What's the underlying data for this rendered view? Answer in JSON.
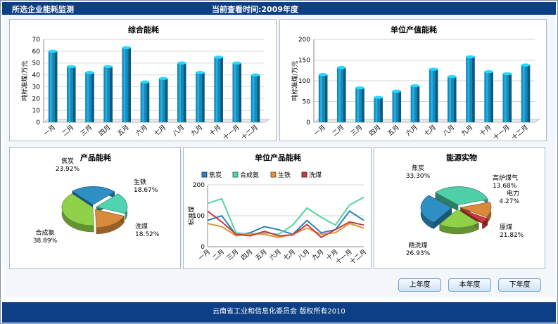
{
  "header": {
    "title": "所选企业能耗监测",
    "time_label": "当前查看时间:2009年度"
  },
  "footer": {
    "copyright": "云南省工业和信息化委员会 版权所有2010"
  },
  "buttons": {
    "prev_year": "上年度",
    "this_year": "本年度",
    "next_year": "下年度"
  },
  "colors": {
    "header_bg": "#0c3f86",
    "bar_blue": "#1788b8"
  },
  "chart_data": [
    {
      "id": "total_energy",
      "type": "bar",
      "title": "综合能耗",
      "ylabel": "吨标准煤/万元",
      "xlabel": "",
      "ylim": [
        0,
        70
      ],
      "yticks": [
        0,
        10,
        20,
        30,
        40,
        50,
        60,
        70
      ],
      "categories": [
        "一月",
        "二月",
        "三月",
        "四月",
        "五月",
        "六月",
        "七月",
        "八月",
        "九月",
        "十月",
        "十一月",
        "十二月"
      ],
      "values": [
        60,
        47,
        42,
        47,
        63,
        34,
        37,
        50,
        42,
        55,
        50,
        40
      ],
      "grid": true
    },
    {
      "id": "unit_output_energy",
      "type": "bar",
      "title": "单位产值能耗",
      "ylabel": "吨标准煤/万元",
      "xlabel": "",
      "ylim": [
        0,
        200
      ],
      "yticks": [
        0,
        50,
        100,
        150,
        200
      ],
      "categories": [
        "一月",
        "二月",
        "三月",
        "四月",
        "五月",
        "六月",
        "七月",
        "八月",
        "九月",
        "十月",
        "十一月",
        "十二月"
      ],
      "values": [
        115,
        132,
        83,
        60,
        75,
        88,
        128,
        110,
        158,
        122,
        117,
        138
      ],
      "grid": true
    },
    {
      "id": "product_energy",
      "type": "pie",
      "title": "产品能耗",
      "slices": [
        {
          "name": "焦炭",
          "pct": "23.92%",
          "value": 23.92,
          "color": "#2d8fc4"
        },
        {
          "name": "生铁",
          "pct": "18.67%",
          "value": 18.67,
          "color": "#4fd3b0"
        },
        {
          "name": "洗煤",
          "pct": "18.52%",
          "value": 18.52,
          "color": "#d98a3a"
        },
        {
          "name": "合成氨",
          "pct": "38.89%",
          "value": 38.89,
          "color": "#8fd24a"
        }
      ]
    },
    {
      "id": "unit_product_energy",
      "type": "line",
      "title": "单位产品能耗",
      "ylabel": "标准煤",
      "ylim": [
        0,
        200
      ],
      "yticks": [
        0,
        100,
        200
      ],
      "categories": [
        "一月",
        "二月",
        "三月",
        "四月",
        "五月",
        "六月",
        "七月",
        "八月",
        "九月",
        "十月",
        "十一月",
        "十二月"
      ],
      "legend_position": "top",
      "series": [
        {
          "name": "焦炭",
          "color": "#2e7fc1",
          "values": [
            85,
            100,
            38,
            45,
            65,
            55,
            40,
            85,
            45,
            55,
            115,
            85
          ]
        },
        {
          "name": "合成氨",
          "color": "#55d3a0",
          "values": [
            140,
            155,
            45,
            40,
            45,
            40,
            70,
            125,
            95,
            70,
            135,
            160
          ]
        },
        {
          "name": "生铁",
          "color": "#e0943a",
          "values": [
            75,
            65,
            35,
            42,
            40,
            30,
            40,
            60,
            40,
            45,
            75,
            60
          ]
        },
        {
          "name": "洗煤",
          "color": "#cc3a3a",
          "values": [
            115,
            80,
            40,
            35,
            50,
            35,
            38,
            72,
            30,
            55,
            80,
            70
          ]
        }
      ]
    },
    {
      "id": "energy_sources",
      "type": "pie",
      "title": "能源实物",
      "slices": [
        {
          "name": "焦炭",
          "pct": "33.30%",
          "value": 33.3,
          "color": "#4fcfa8"
        },
        {
          "name": "高炉煤气",
          "pct": "13.68%",
          "value": 13.68,
          "color": "#d98a3a"
        },
        {
          "name": "电力",
          "pct": "4.27%",
          "value": 4.27,
          "color": "#d23a3a"
        },
        {
          "name": "原煤",
          "pct": "21.82%",
          "value": 21.82,
          "color": "#8fd24a"
        },
        {
          "name": "精洗煤",
          "pct": "26.93%",
          "value": 26.93,
          "color": "#2d8fc4"
        }
      ]
    }
  ]
}
